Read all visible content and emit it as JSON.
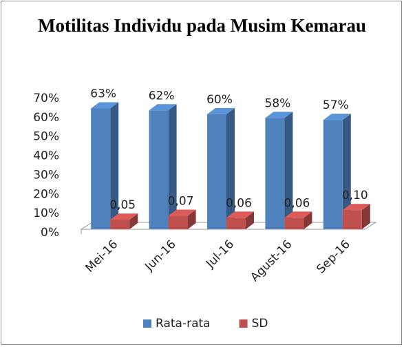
{
  "chart_data": {
    "type": "bar3d",
    "title": "Motilitas Individu pada Musim Kemarau",
    "categories": [
      "Mei-16",
      "Jun-16",
      "Jul-16",
      "Agust-16",
      "Sep-16"
    ],
    "series": [
      {
        "name": "Rata-rata",
        "color": "#4f81bd",
        "values": [
          63,
          62,
          60,
          58,
          57
        ],
        "value_labels": [
          "63%",
          "62%",
          "60%",
          "58%",
          "57%"
        ]
      },
      {
        "name": "SD",
        "color": "#c0504d",
        "values": [
          5,
          7,
          6,
          6,
          10
        ],
        "value_labels": [
          "0,05",
          "0,07",
          "0,06",
          "0,06",
          "0,10"
        ]
      }
    ],
    "ylim": [
      0,
      70
    ],
    "yticks": [
      {
        "value": 0,
        "label": "0%"
      },
      {
        "value": 10,
        "label": "10%"
      },
      {
        "value": 20,
        "label": "20%"
      },
      {
        "value": 30,
        "label": "30%"
      },
      {
        "value": 40,
        "label": "40%"
      },
      {
        "value": 50,
        "label": "50%"
      },
      {
        "value": 60,
        "label": "60%"
      },
      {
        "value": 70,
        "label": "70%"
      }
    ],
    "legend": "bottom"
  }
}
